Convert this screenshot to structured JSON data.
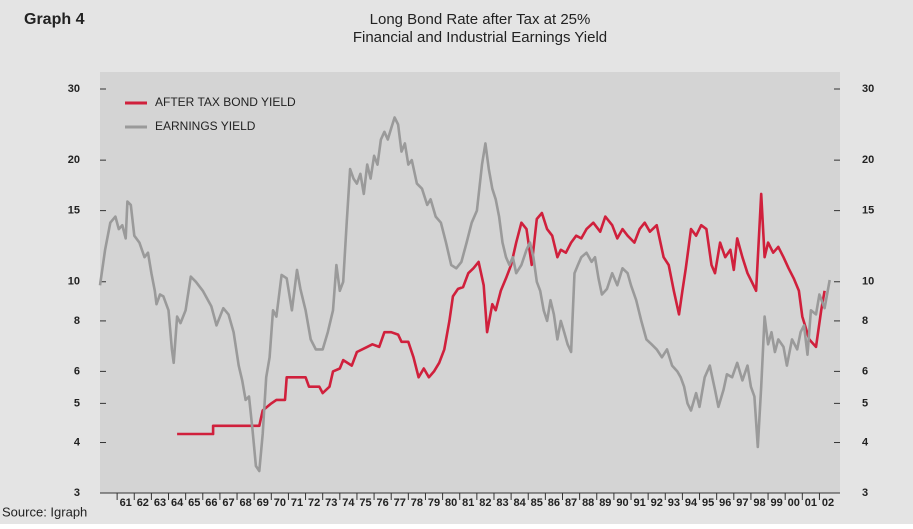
{
  "chart_data": {
    "type": "line",
    "label": "Graph 4",
    "title": "Long Bond Rate after Tax at 25%",
    "subtitle": "Financial and Industrial Earnings Yield",
    "source": "Source: Igraph",
    "log_scale": true,
    "legend": "top-left",
    "xlim": [
      1960,
      2003.2
    ],
    "xticks": [
      {
        "value": 1961.5,
        "label": "61"
      },
      {
        "value": 1962.5,
        "label": "62"
      },
      {
        "value": 1963.5,
        "label": "63"
      },
      {
        "value": 1964.5,
        "label": "64"
      },
      {
        "value": 1965.5,
        "label": "65"
      },
      {
        "value": 1966.5,
        "label": "66"
      },
      {
        "value": 1967.5,
        "label": "67"
      },
      {
        "value": 1968.5,
        "label": "68"
      },
      {
        "value": 1969.5,
        "label": "69"
      },
      {
        "value": 1970.5,
        "label": "70"
      },
      {
        "value": 1971.5,
        "label": "71"
      },
      {
        "value": 1972.5,
        "label": "72"
      },
      {
        "value": 1973.5,
        "label": "73"
      },
      {
        "value": 1974.5,
        "label": "74"
      },
      {
        "value": 1975.5,
        "label": "75"
      },
      {
        "value": 1976.5,
        "label": "76"
      },
      {
        "value": 1977.5,
        "label": "77"
      },
      {
        "value": 1978.5,
        "label": "78"
      },
      {
        "value": 1979.5,
        "label": "79"
      },
      {
        "value": 1980.5,
        "label": "80"
      },
      {
        "value": 1981.5,
        "label": "81"
      },
      {
        "value": 1982.5,
        "label": "82"
      },
      {
        "value": 1983.5,
        "label": "83"
      },
      {
        "value": 1984.5,
        "label": "84"
      },
      {
        "value": 1985.5,
        "label": "85"
      },
      {
        "value": 1986.5,
        "label": "86"
      },
      {
        "value": 1987.5,
        "label": "87"
      },
      {
        "value": 1988.5,
        "label": "88"
      },
      {
        "value": 1989.5,
        "label": "89"
      },
      {
        "value": 1990.5,
        "label": "90"
      },
      {
        "value": 1991.5,
        "label": "91"
      },
      {
        "value": 1992.5,
        "label": "92"
      },
      {
        "value": 1993.5,
        "label": "93"
      },
      {
        "value": 1994.5,
        "label": "94"
      },
      {
        "value": 1995.5,
        "label": "95"
      },
      {
        "value": 1996.5,
        "label": "96"
      },
      {
        "value": 1997.5,
        "label": "97"
      },
      {
        "value": 1998.5,
        "label": "98"
      },
      {
        "value": 1999.5,
        "label": "99"
      },
      {
        "value": 2000.5,
        "label": "00"
      },
      {
        "value": 2001.5,
        "label": "01"
      },
      {
        "value": 2002.5,
        "label": "02"
      }
    ],
    "ylim": [
      3,
      30
    ],
    "yticks": [
      3,
      4,
      5,
      6,
      8,
      10,
      15,
      20,
      30
    ],
    "y2lim": [
      3,
      30
    ],
    "y2ticks": [
      3,
      4,
      5,
      6,
      8,
      10,
      15,
      20,
      30
    ],
    "series": [
      {
        "name": "AFTER TAX BOND YIELD",
        "color": "#d0203c",
        "x": [
          1964.5,
          1966.6,
          1966.6,
          1969.3,
          1969.5,
          1970.0,
          1970.3,
          1970.8,
          1970.9,
          1972.0,
          1972.2,
          1972.8,
          1973.0,
          1973.4,
          1973.6,
          1974.0,
          1974.2,
          1974.7,
          1975.0,
          1975.6,
          1975.9,
          1976.3,
          1976.6,
          1977.0,
          1977.4,
          1977.6,
          1978.0,
          1978.3,
          1978.6,
          1978.9,
          1979.2,
          1979.5,
          1979.8,
          1980.1,
          1980.4,
          1980.6,
          1980.9,
          1981.2,
          1981.5,
          1981.8,
          1982.1,
          1982.4,
          1982.6,
          1982.9,
          1983.1,
          1983.4,
          1983.7,
          1984.0,
          1984.3,
          1984.6,
          1984.9,
          1985.2,
          1985.5,
          1985.8,
          1986.1,
          1986.4,
          1986.7,
          1986.9,
          1987.2,
          1987.5,
          1987.8,
          1988.1,
          1988.4,
          1988.8,
          1989.2,
          1989.5,
          1989.9,
          1990.2,
          1990.5,
          1990.8,
          1991.2,
          1991.5,
          1991.8,
          1992.1,
          1992.5,
          1992.9,
          1993.2,
          1993.5,
          1993.8,
          1994.0,
          1994.2,
          1994.5,
          1994.8,
          1995.1,
          1995.4,
          1995.7,
          1995.9,
          1996.2,
          1996.5,
          1996.8,
          1997.0,
          1997.2,
          1997.5,
          1997.8,
          1998.1,
          1998.3,
          1998.6,
          1998.8,
          1999.0,
          1999.3,
          1999.6,
          1999.9,
          2000.2,
          2000.5,
          2000.8,
          2001.0,
          2001.2,
          2001.4,
          2001.8,
          2002.1,
          2002.3
        ],
        "values": [
          4.2,
          4.2,
          4.4,
          4.4,
          4.8,
          5.0,
          5.1,
          5.1,
          5.8,
          5.8,
          5.5,
          5.5,
          5.3,
          5.5,
          6.0,
          6.1,
          6.4,
          6.2,
          6.7,
          6.9,
          7.0,
          6.9,
          7.5,
          7.5,
          7.4,
          7.1,
          7.1,
          6.5,
          5.8,
          6.1,
          5.8,
          6.0,
          6.3,
          6.8,
          8.0,
          9.2,
          9.6,
          9.7,
          10.5,
          10.8,
          11.2,
          9.8,
          7.5,
          8.8,
          8.5,
          9.5,
          10.2,
          11,
          12.5,
          14,
          13.5,
          11,
          14.3,
          14.8,
          13.5,
          13,
          11.5,
          12,
          11.8,
          12.5,
          13,
          12.8,
          13.5,
          14,
          13.3,
          14.5,
          13.8,
          12.8,
          13.5,
          13,
          12.5,
          13.5,
          14,
          13.3,
          13.8,
          11.5,
          11,
          9.5,
          8.3,
          9.5,
          10.8,
          13.5,
          13,
          13.8,
          13.5,
          11,
          10.5,
          12.5,
          11.5,
          12,
          10.7,
          12.8,
          11.5,
          10.5,
          9.9,
          9.5,
          16.5,
          11.5,
          12.5,
          11.8,
          12.2,
          11.5,
          10.8,
          10.2,
          9.5,
          8.2,
          7.7,
          7.2,
          6.9,
          8.5,
          9.5
        ]
      },
      {
        "name": "EARNINGS YIELD",
        "color": "#9a9a9a",
        "x": [
          1960.0,
          1960.3,
          1960.6,
          1960.9,
          1961.1,
          1961.3,
          1961.5,
          1961.6,
          1961.8,
          1962.0,
          1962.3,
          1962.6,
          1962.8,
          1963.0,
          1963.2,
          1963.3,
          1963.5,
          1963.7,
          1964.0,
          1964.2,
          1964.3,
          1964.5,
          1964.7,
          1965.0,
          1965.3,
          1965.6,
          1966.0,
          1966.5,
          1966.8,
          1967.2,
          1967.5,
          1967.8,
          1968.1,
          1968.3,
          1968.5,
          1968.7,
          1968.9,
          1969.1,
          1969.3,
          1969.5,
          1969.7,
          1969.9,
          1970.1,
          1970.3,
          1970.6,
          1970.9,
          1971.2,
          1971.5,
          1971.7,
          1972.0,
          1972.3,
          1972.6,
          1973.0,
          1973.3,
          1973.6,
          1973.8,
          1974.0,
          1974.2,
          1974.4,
          1974.6,
          1974.8,
          1975.0,
          1975.2,
          1975.4,
          1975.6,
          1975.8,
          1976.0,
          1976.2,
          1976.4,
          1976.6,
          1976.8,
          1977.0,
          1977.2,
          1977.4,
          1977.6,
          1977.8,
          1978.0,
          1978.2,
          1978.5,
          1978.8,
          1979.1,
          1979.3,
          1979.6,
          1979.9,
          1980.2,
          1980.5,
          1980.8,
          1981.1,
          1981.4,
          1981.7,
          1982.0,
          1982.3,
          1982.5,
          1982.7,
          1982.9,
          1983.1,
          1983.3,
          1983.5,
          1983.7,
          1983.9,
          1984.1,
          1984.3,
          1984.6,
          1984.9,
          1985.1,
          1985.3,
          1985.5,
          1985.7,
          1985.9,
          1986.1,
          1986.3,
          1986.5,
          1986.7,
          1986.9,
          1987.1,
          1987.3,
          1987.5,
          1987.7,
          1987.9,
          1988.1,
          1988.4,
          1988.7,
          1988.9,
          1989.1,
          1989.3,
          1989.6,
          1989.9,
          1990.2,
          1990.5,
          1990.8,
          1991.0,
          1991.3,
          1991.6,
          1991.9,
          1992.2,
          1992.5,
          1992.8,
          1993.1,
          1993.4,
          1993.7,
          1993.9,
          1994.1,
          1994.3,
          1994.5,
          1994.8,
          1995.0,
          1995.3,
          1995.6,
          1995.9,
          1996.1,
          1996.4,
          1996.6,
          1996.9,
          1997.2,
          1997.5,
          1997.8,
          1998.0,
          1998.2,
          1998.4,
          1998.6,
          1998.8,
          1999.0,
          1999.2,
          1999.4,
          1999.6,
          1999.9,
          2000.1,
          2000.4,
          2000.7,
          2000.9,
          2001.1,
          2001.3,
          2001.5,
          2001.8,
          2002.0,
          2002.3,
          2002.6
        ],
        "values": [
          9.8,
          12,
          14,
          14.5,
          13.5,
          13.8,
          12.8,
          15.8,
          15.5,
          13,
          12.5,
          11.5,
          11.8,
          10.5,
          9.5,
          8.8,
          9.3,
          9.2,
          8.5,
          6.8,
          6.3,
          8.2,
          7.9,
          8.5,
          10.3,
          10.0,
          9.5,
          8.7,
          7.8,
          8.6,
          8.3,
          7.5,
          6.2,
          5.7,
          5.1,
          5.2,
          4.3,
          3.5,
          3.4,
          4.2,
          5.8,
          6.5,
          8.5,
          8.2,
          10.4,
          10.2,
          8.5,
          10.7,
          9.6,
          8.5,
          7.2,
          6.8,
          6.8,
          7.5,
          8.5,
          11,
          9.5,
          10,
          14,
          19,
          18,
          17.5,
          18.5,
          16.5,
          19.5,
          18,
          20.5,
          19.5,
          22.5,
          23.5,
          22.5,
          24,
          25.5,
          24.5,
          21,
          22,
          19.5,
          20,
          17.5,
          17,
          15.5,
          16,
          14.5,
          14,
          12.5,
          11,
          10.8,
          11.2,
          12.5,
          14,
          15,
          19.5,
          22,
          19,
          17,
          16,
          14.5,
          12.5,
          11.5,
          11,
          11.5,
          10.5,
          11,
          12,
          12.5,
          11.5,
          10,
          9.5,
          8.5,
          8,
          9,
          8.3,
          7.2,
          8,
          7.5,
          7,
          6.7,
          10.5,
          11,
          11.5,
          11.8,
          11.2,
          11.5,
          10.2,
          9.3,
          9.6,
          10.5,
          9.8,
          10.8,
          10.5,
          9.8,
          9,
          8,
          7.2,
          7,
          6.8,
          6.5,
          6.8,
          6.2,
          6,
          5.8,
          5.5,
          5.0,
          4.8,
          5.3,
          4.9,
          5.8,
          6.2,
          5.4,
          4.9,
          5.4,
          5.9,
          5.8,
          6.3,
          5.7,
          6.2,
          5.5,
          5.2,
          3.9,
          5.5,
          8.2,
          7,
          7.5,
          6.7,
          7.2,
          6.9,
          6.2,
          7.2,
          6.8,
          7.5,
          7.8,
          6.6,
          8.5,
          8.3,
          9.3,
          8.6,
          10.1
        ]
      }
    ]
  }
}
